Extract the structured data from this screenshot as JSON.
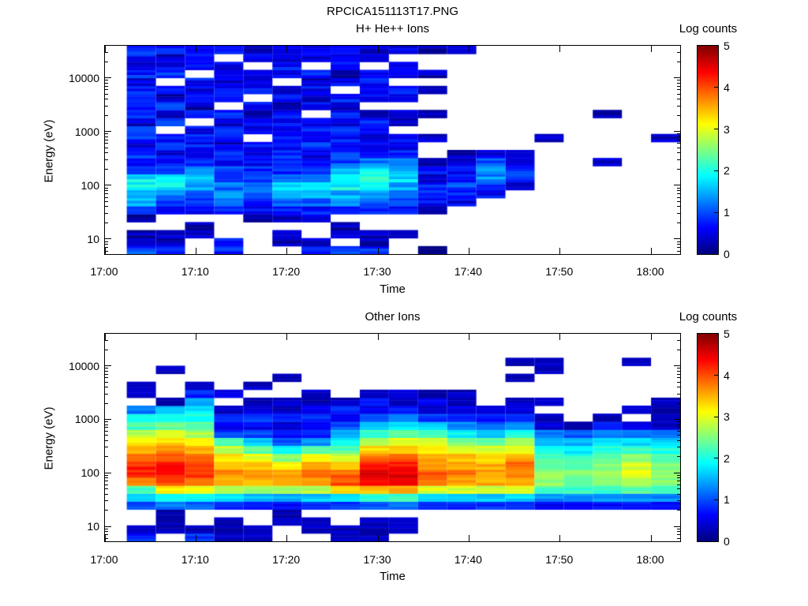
{
  "title": "RPCICA151113T17.PNG",
  "chart_data": [
    {
      "type": "heatmap",
      "subtype": "time-energy spectrogram",
      "title": "H+ He++ Ions",
      "xlabel": "Time",
      "ylabel": "Energy (eV)",
      "colorbar_label": "Log counts",
      "colormap": "jet",
      "log_counts_range": [
        0,
        5
      ],
      "colorbar_tick_labels": [
        "0",
        "1",
        "2",
        "3",
        "4",
        "5"
      ],
      "x_tick_labels": [
        "17:00",
        "17:10",
        "17:20",
        "17:30",
        "17:40",
        "17:50",
        "18:00"
      ],
      "x_tick_minutes": [
        0,
        10,
        20,
        30,
        40,
        50,
        60
      ],
      "x_axis_range_minutes": [
        0,
        63.2
      ],
      "y_scale": "log",
      "y_tick_labels": [
        "10",
        "100",
        "1000",
        "10000"
      ],
      "y_tick_values": [
        10,
        100,
        1000,
        10000
      ],
      "energy_range_ev": [
        5.3,
        39800
      ],
      "no_data_color": "white",
      "column_start_minute": 2.4,
      "column_duration_minutes": 3.2,
      "n_time_columns": 19,
      "n_energy_bins": 26,
      "energy_bin_centers_ev": [
        6.2,
        8.8,
        12.4,
        17.5,
        24.7,
        35,
        49,
        70,
        99,
        139,
        197,
        278,
        393,
        555,
        784,
        1108,
        1566,
        2212,
        3126,
        4417,
        6242,
        8821,
        12465,
        17614,
        24891,
        35172
      ],
      "values": [
        [
          1.0,
          0.3,
          0.3,
          null,
          0.2,
          0.8,
          1.5,
          1.6,
          1.9,
          1.8,
          1.1,
          0.8,
          0.9,
          0.5,
          0.8,
          0.9,
          0.4,
          0.8,
          0.6,
          0.9,
          0.7,
          0.5,
          0.8,
          0.4,
          0.7,
          0.8
        ],
        [
          0.9,
          0.3,
          0.3,
          null,
          null,
          0.7,
          0.9,
          1.2,
          1.9,
          1.7,
          1.0,
          0.7,
          0.5,
          0.8,
          0.7,
          null,
          0.8,
          0.5,
          0.9,
          0.3,
          0.7,
          null,
          0.8,
          0.6,
          0.4,
          0.7
        ],
        [
          null,
          null,
          0.3,
          0.3,
          null,
          0.6,
          0.8,
          1.0,
          1.4,
          1.5,
          1.2,
          0.8,
          0.4,
          0.7,
          0.8,
          0.6,
          null,
          0.7,
          0.3,
          0.8,
          0.5,
          0.7,
          null,
          0.6,
          0.8,
          0.5
        ],
        [
          0.8,
          0.8,
          null,
          null,
          null,
          0.7,
          1.3,
          1.4,
          1.2,
          1.0,
          0.9,
          0.6,
          0.8,
          0.4,
          0.6,
          0.8,
          0.5,
          0.8,
          null,
          0.6,
          0.7,
          0.4,
          0.7,
          0.5,
          null,
          0.7
        ],
        [
          null,
          null,
          null,
          null,
          0.3,
          0.7,
          0.8,
          1.0,
          1.1,
          0.9,
          0.8,
          0.7,
          0.5,
          0.7,
          null,
          0.5,
          0.7,
          0.3,
          0.6,
          null,
          0.7,
          0.5,
          0.6,
          null,
          0.7,
          0.4
        ],
        [
          null,
          0.3,
          0.3,
          null,
          0.4,
          0.8,
          1.0,
          1.3,
          1.6,
          1.2,
          0.9,
          0.7,
          0.8,
          0.5,
          0.7,
          0.4,
          0.6,
          0.7,
          0.3,
          0.7,
          0.4,
          null,
          0.6,
          0.7,
          0.3,
          0.6
        ],
        [
          0.8,
          0.3,
          null,
          null,
          0.4,
          0.7,
          1.1,
          1.4,
          1.7,
          1.4,
          1.0,
          0.8,
          0.6,
          0.8,
          0.4,
          0.7,
          0.5,
          null,
          0.7,
          0.3,
          0.6,
          0.4,
          0.7,
          null,
          0.5,
          0.7
        ],
        [
          0.9,
          null,
          0.3,
          0.3,
          null,
          0.8,
          1.2,
          1.5,
          1.9,
          1.9,
          1.5,
          1.0,
          0.8,
          0.5,
          0.7,
          0.8,
          0.4,
          0.7,
          0.5,
          0.7,
          null,
          0.6,
          0.3,
          0.7,
          0.4,
          0.6
        ],
        [
          0.8,
          0.3,
          0.3,
          null,
          null,
          0.7,
          1.0,
          1.3,
          1.8,
          2.0,
          1.8,
          1.2,
          0.8,
          0.7,
          0.4,
          0.6,
          0.7,
          0.3,
          null,
          0.6,
          0.4,
          0.7,
          0.5,
          null,
          0.6,
          0.4
        ],
        [
          null,
          null,
          0.2,
          null,
          null,
          0.6,
          0.9,
          1.1,
          1.4,
          1.7,
          1.6,
          1.3,
          0.8,
          0.6,
          0.7,
          null,
          0.4,
          0.6,
          null,
          0.5,
          0.7,
          null,
          0.4,
          0.6,
          null,
          0.5
        ],
        [
          0.2,
          null,
          null,
          null,
          null,
          0.4,
          0.7,
          0.8,
          0.7,
          0.5,
          0.6,
          0.4,
          null,
          null,
          0.3,
          null,
          null,
          0.3,
          null,
          null,
          0.3,
          null,
          0.3,
          null,
          null,
          0.3
        ],
        [
          null,
          null,
          null,
          null,
          null,
          null,
          0.5,
          0.8,
          1.0,
          0.8,
          0.6,
          0.5,
          0.3,
          null,
          null,
          null,
          null,
          null,
          null,
          null,
          null,
          null,
          null,
          null,
          null,
          0.3
        ],
        [
          null,
          null,
          null,
          null,
          null,
          null,
          null,
          0.6,
          0.9,
          1.3,
          1.4,
          1.0,
          0.4,
          null,
          null,
          null,
          null,
          null,
          null,
          null,
          null,
          null,
          null,
          null,
          null,
          null
        ],
        [
          null,
          null,
          null,
          null,
          null,
          null,
          null,
          null,
          0.5,
          0.8,
          0.8,
          0.6,
          0.3,
          null,
          null,
          null,
          null,
          null,
          null,
          null,
          null,
          null,
          null,
          null,
          null,
          null
        ],
        [
          null,
          null,
          null,
          null,
          null,
          null,
          null,
          null,
          null,
          null,
          null,
          null,
          null,
          null,
          0.3,
          null,
          null,
          null,
          null,
          null,
          null,
          null,
          null,
          null,
          null,
          null
        ],
        [
          null,
          null,
          null,
          null,
          null,
          null,
          null,
          null,
          null,
          null,
          null,
          null,
          null,
          null,
          null,
          null,
          null,
          null,
          null,
          null,
          null,
          null,
          null,
          null,
          null,
          null
        ],
        [
          null,
          null,
          null,
          null,
          null,
          null,
          null,
          null,
          null,
          null,
          null,
          0.3,
          null,
          null,
          null,
          null,
          null,
          0.3,
          null,
          null,
          null,
          null,
          null,
          null,
          null,
          null
        ],
        [
          null,
          null,
          null,
          null,
          null,
          null,
          null,
          null,
          null,
          null,
          null,
          null,
          null,
          null,
          null,
          null,
          null,
          null,
          null,
          null,
          null,
          null,
          null,
          null,
          null,
          null
        ],
        [
          null,
          null,
          null,
          null,
          null,
          null,
          null,
          null,
          null,
          null,
          null,
          null,
          null,
          null,
          0.3,
          null,
          null,
          null,
          null,
          null,
          null,
          null,
          null,
          null,
          null,
          null
        ]
      ]
    },
    {
      "type": "heatmap",
      "subtype": "time-energy spectrogram",
      "title": "Other Ions",
      "xlabel": "Time",
      "ylabel": "Energy (eV)",
      "colorbar_label": "Log counts",
      "colormap": "jet",
      "log_counts_range": [
        0,
        5
      ],
      "colorbar_tick_labels": [
        "0",
        "1",
        "2",
        "3",
        "4",
        "5"
      ],
      "x_tick_labels": [
        "17:00",
        "17:10",
        "17:20",
        "17:30",
        "17:40",
        "17:50",
        "18:00"
      ],
      "x_tick_minutes": [
        0,
        10,
        20,
        30,
        40,
        50,
        60
      ],
      "x_axis_range_minutes": [
        0,
        63.2
      ],
      "y_scale": "log",
      "y_tick_labels": [
        "10",
        "100",
        "1000",
        "10000"
      ],
      "y_tick_values": [
        10,
        100,
        1000,
        10000
      ],
      "energy_range_ev": [
        5.3,
        39800
      ],
      "no_data_color": "white",
      "column_start_minute": 2.4,
      "column_duration_minutes": 3.2,
      "n_time_columns": 19,
      "n_energy_bins": 26,
      "energy_bin_centers_ev": [
        6.2,
        8.8,
        12.4,
        17.5,
        24.7,
        35,
        49,
        70,
        99,
        139,
        197,
        278,
        393,
        555,
        784,
        1108,
        1566,
        2212,
        3126,
        4417,
        6242,
        8821,
        12465,
        17614,
        24891,
        35172
      ],
      "values": [
        [
          0.8,
          0.3,
          null,
          null,
          1.0,
          1.6,
          2.2,
          3.8,
          4.2,
          4.2,
          4.0,
          3.6,
          3.2,
          2.8,
          2.2,
          1.9,
          1.2,
          null,
          0.3,
          0.4,
          null,
          null,
          null,
          null,
          null,
          null
        ],
        [
          null,
          0.3,
          0.2,
          0.2,
          1.2,
          2.0,
          3.2,
          4.0,
          4.3,
          4.3,
          4.0,
          3.7,
          3.3,
          2.9,
          2.4,
          2.0,
          1.5,
          0.3,
          null,
          null,
          null,
          0.3,
          null,
          null,
          null,
          null
        ],
        [
          0.9,
          0.3,
          null,
          null,
          1.1,
          1.9,
          3.0,
          3.8,
          4.1,
          4.0,
          3.8,
          3.5,
          3.1,
          2.7,
          2.3,
          2.0,
          1.8,
          1.4,
          0.8,
          0.4,
          null,
          null,
          null,
          null,
          null,
          null
        ],
        [
          0.3,
          0.3,
          0.3,
          null,
          0.9,
          1.7,
          2.8,
          3.5,
          3.7,
          3.5,
          3.2,
          2.8,
          2.2,
          0.9,
          0.5,
          0.8,
          0.4,
          null,
          0.5,
          null,
          null,
          null,
          null,
          null,
          null,
          null
        ],
        [
          0.3,
          0.3,
          null,
          null,
          0.8,
          1.6,
          2.7,
          3.4,
          3.6,
          3.4,
          3.0,
          2.4,
          1.6,
          1.0,
          0.6,
          0.9,
          0.5,
          0.3,
          null,
          0.3,
          null,
          null,
          null,
          null,
          null,
          null
        ],
        [
          null,
          null,
          0.3,
          0.3,
          0.7,
          1.5,
          2.6,
          3.4,
          3.5,
          3.2,
          2.6,
          1.8,
          1.0,
          0.6,
          0.4,
          0.7,
          0.3,
          0.4,
          null,
          null,
          0.3,
          null,
          null,
          null,
          null,
          null
        ],
        [
          null,
          0.3,
          0.3,
          null,
          0.8,
          1.6,
          2.8,
          3.5,
          3.8,
          3.7,
          3.2,
          2.4,
          1.4,
          0.7,
          0.5,
          0.8,
          0.5,
          0.3,
          0.4,
          null,
          null,
          null,
          null,
          null,
          null,
          null
        ],
        [
          0.3,
          0.3,
          null,
          null,
          0.9,
          1.8,
          3.2,
          4.0,
          3.9,
          3.4,
          2.9,
          2.3,
          1.8,
          1.4,
          1.0,
          0.5,
          0.8,
          0.3,
          null,
          null,
          null,
          null,
          null,
          null,
          null,
          null
        ],
        [
          0.3,
          0.3,
          0.3,
          null,
          1.0,
          2.0,
          3.4,
          4.3,
          4.5,
          4.2,
          3.8,
          3.3,
          2.8,
          2.2,
          1.6,
          1.0,
          0.5,
          0.8,
          0.3,
          null,
          null,
          null,
          null,
          null,
          null,
          null
        ],
        [
          null,
          0.3,
          0.3,
          null,
          1.1,
          2.1,
          3.5,
          4.4,
          4.5,
          4.3,
          4.0,
          3.4,
          3.0,
          2.4,
          1.8,
          1.2,
          0.8,
          0.4,
          0.5,
          null,
          null,
          null,
          null,
          null,
          null,
          null
        ],
        [
          null,
          null,
          null,
          null,
          0.9,
          1.8,
          3.0,
          3.8,
          3.9,
          3.7,
          3.5,
          3.3,
          2.9,
          2.3,
          1.6,
          0.9,
          0.4,
          0.6,
          0.3,
          null,
          null,
          null,
          null,
          null,
          null,
          null
        ],
        [
          null,
          null,
          null,
          null,
          0.8,
          1.7,
          2.9,
          3.6,
          3.8,
          3.6,
          3.4,
          3.0,
          2.5,
          1.9,
          1.3,
          0.8,
          0.5,
          0.3,
          0.3,
          null,
          null,
          null,
          null,
          null,
          null,
          null
        ],
        [
          null,
          null,
          null,
          null,
          0.8,
          1.6,
          2.8,
          3.5,
          3.6,
          3.5,
          3.3,
          2.9,
          2.3,
          1.7,
          1.1,
          0.7,
          0.4,
          null,
          null,
          null,
          null,
          null,
          null,
          null,
          null,
          null
        ],
        [
          null,
          null,
          null,
          null,
          0.9,
          1.7,
          2.9,
          3.6,
          3.8,
          3.8,
          3.5,
          3.1,
          2.6,
          2.0,
          1.4,
          0.8,
          0.5,
          0.4,
          null,
          null,
          0.3,
          null,
          0.3,
          null,
          null,
          null
        ],
        [
          null,
          null,
          null,
          null,
          0.6,
          1.3,
          2.2,
          2.6,
          2.6,
          2.4,
          2.2,
          1.9,
          1.6,
          1.2,
          0.4,
          0.3,
          null,
          0.3,
          null,
          null,
          null,
          0.3,
          0.3,
          null,
          null,
          null
        ],
        [
          null,
          null,
          null,
          null,
          0.6,
          1.3,
          2.1,
          2.4,
          2.5,
          2.3,
          2.1,
          1.8,
          1.5,
          1.1,
          0.3,
          null,
          null,
          null,
          null,
          null,
          null,
          null,
          null,
          null,
          null,
          null
        ],
        [
          null,
          null,
          null,
          null,
          0.7,
          1.4,
          2.2,
          2.6,
          2.7,
          2.5,
          2.3,
          2.0,
          1.7,
          1.3,
          0.8,
          0.3,
          null,
          null,
          null,
          null,
          null,
          null,
          null,
          null,
          null,
          null
        ],
        [
          null,
          null,
          null,
          null,
          0.7,
          1.4,
          2.3,
          2.7,
          3.0,
          2.9,
          2.5,
          2.1,
          1.7,
          1.2,
          0.4,
          null,
          0.3,
          null,
          null,
          null,
          null,
          null,
          0.3,
          null,
          null,
          null
        ],
        [
          null,
          null,
          null,
          null,
          0.6,
          1.3,
          2.2,
          2.5,
          2.6,
          2.5,
          2.3,
          2.0,
          1.6,
          1.1,
          0.3,
          0.4,
          0.3,
          0.3,
          null,
          null,
          null,
          null,
          null,
          null,
          null,
          null
        ]
      ]
    }
  ]
}
